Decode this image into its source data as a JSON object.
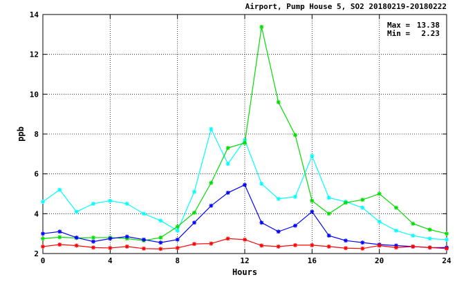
{
  "chart_data": {
    "type": "line",
    "title": "Airport, Pump House 5, SO2 20180219-20180222",
    "xlabel": "Hours",
    "ylabel": "ppb",
    "xlim": [
      0,
      24
    ],
    "ylim": [
      2,
      14
    ],
    "xticks": [
      0,
      4,
      8,
      12,
      16,
      20,
      24
    ],
    "yticks": [
      2,
      4,
      6,
      8,
      10,
      12,
      14
    ],
    "grid": true,
    "marker": "asterisk",
    "annotations": {
      "max_label": "Max =",
      "max_value": "13.38",
      "min_label": "Min =",
      "min_value": "2.23"
    },
    "x": [
      0,
      1,
      2,
      3,
      4,
      5,
      6,
      7,
      8,
      9,
      10,
      11,
      12,
      13,
      14,
      15,
      16,
      17,
      18,
      19,
      20,
      21,
      22,
      23,
      24
    ],
    "series": [
      {
        "color": "#00ffff",
        "values": [
          4.6,
          5.2,
          4.1,
          4.5,
          4.65,
          4.5,
          4.0,
          3.65,
          3.15,
          5.1,
          8.25,
          6.5,
          7.7,
          5.5,
          4.75,
          4.85,
          6.9,
          4.8,
          4.6,
          4.3,
          3.6,
          3.15,
          2.9,
          2.75,
          2.7
        ]
      },
      {
        "color": "#00dd00",
        "values": [
          2.75,
          2.82,
          2.78,
          2.8,
          2.8,
          2.75,
          2.65,
          2.8,
          3.35,
          4.05,
          5.55,
          7.3,
          7.55,
          13.38,
          9.6,
          7.95,
          4.65,
          4.0,
          4.55,
          4.7,
          5.0,
          4.3,
          3.5,
          3.2,
          3.0
        ]
      },
      {
        "color": "#0000ff",
        "values": [
          3.0,
          3.1,
          2.8,
          2.6,
          2.75,
          2.85,
          2.7,
          2.55,
          2.7,
          3.55,
          4.4,
          5.05,
          5.45,
          3.55,
          3.1,
          3.4,
          4.1,
          2.9,
          2.65,
          2.55,
          2.45,
          2.4,
          2.35,
          2.3,
          2.3
        ]
      },
      {
        "color": "#ff0000",
        "values": [
          2.35,
          2.45,
          2.4,
          2.3,
          2.28,
          2.35,
          2.25,
          2.23,
          2.28,
          2.48,
          2.5,
          2.75,
          2.7,
          2.4,
          2.35,
          2.42,
          2.42,
          2.35,
          2.27,
          2.25,
          2.4,
          2.3,
          2.35,
          2.3,
          2.25
        ]
      }
    ]
  }
}
